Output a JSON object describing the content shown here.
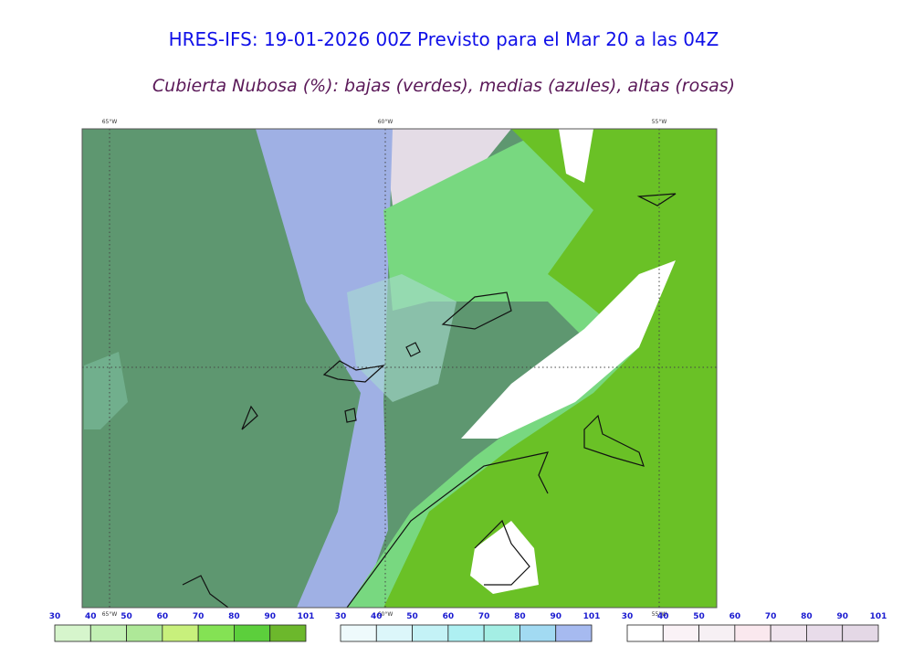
{
  "header": {
    "title": "HRES-IFS: 19-01-2026 00Z Previsto para el Mar 20 a las 04Z",
    "subtitle": "Cubierta Nubosa (%): bajas (verdes), medias (azules), altas (rosas)"
  },
  "map": {
    "longitude_labels": [
      "65°W",
      "60°W",
      "55°W"
    ]
  },
  "colorbars": [
    {
      "ticks": [
        30,
        40,
        50,
        60,
        70,
        80,
        90,
        101
      ],
      "colors": [
        "#d6f5cc",
        "#c2f0b4",
        "#aee898",
        "#c8f07c",
        "#84e254",
        "#5ccf3c",
        "#6cb82c"
      ]
    },
    {
      "ticks": [
        30,
        40,
        50,
        60,
        70,
        80,
        90,
        101
      ],
      "colors": [
        "#eefafc",
        "#dcf6fa",
        "#c4f2f6",
        "#aef0f2",
        "#a4eee4",
        "#a2daf2",
        "#a6baf0"
      ]
    },
    {
      "ticks": [
        30,
        40,
        50,
        60,
        70,
        80,
        90,
        101
      ],
      "colors": [
        "#ffffff",
        "#faf2f6",
        "#f6f0f4",
        "#fae8ee",
        "#f0e4ee",
        "#e8dcea",
        "#e4d8e6"
      ]
    }
  ]
}
